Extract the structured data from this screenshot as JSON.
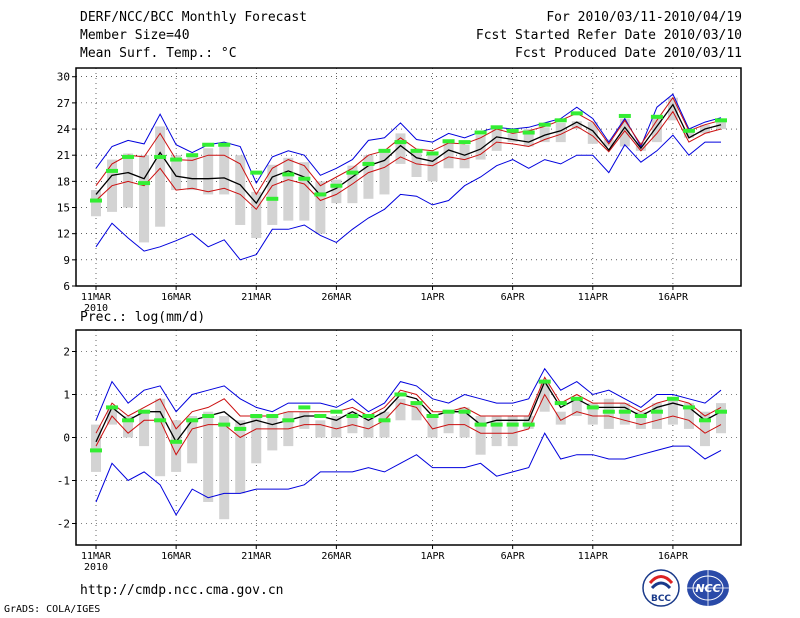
{
  "header": {
    "title": "DERF/NCC/BCC Monthly Forecast",
    "member_size": "Member Size=40",
    "period": "For 2010/03/11-2010/04/19",
    "fcst_started": "Fcst Started Refer Date 2010/03/10",
    "fcst_produced": "Fcst Produced Date 2010/03/11"
  },
  "footer": {
    "url": "http://cmdp.ncc.cma.gov.cn",
    "grads_credit": "GrADS: COLA/IGES",
    "logo_left_text": "BCC",
    "logo_right_text": "NCC"
  },
  "colors": {
    "box": "#d3d3d3",
    "obs": "#33ee33",
    "mean": "#000000",
    "sd": "#cc1111",
    "minmax": "#0000dd"
  },
  "chart_data": [
    {
      "type": "line",
      "title": "Mean Surf. Temp.: °C",
      "x": [
        1,
        2,
        3,
        4,
        5,
        6,
        7,
        8,
        9,
        10,
        11,
        12,
        13,
        14,
        15,
        16,
        17,
        18,
        19,
        20,
        21,
        22,
        23,
        24,
        25,
        26,
        27,
        28,
        29,
        30,
        31,
        32,
        33,
        34,
        35,
        36,
        37,
        38,
        39,
        40
      ],
      "x_tick_labels": [
        "11MAR",
        "16MAR",
        "21MAR",
        "26MAR",
        "1APR",
        "6APR",
        "11APR",
        "16APR"
      ],
      "x_tick_positions": [
        1,
        6,
        11,
        16,
        22,
        27,
        32,
        37
      ],
      "x_year_label": "2010",
      "ylim": [
        6,
        31
      ],
      "yticks": [
        6,
        9,
        12,
        15,
        18,
        21,
        24,
        27,
        30
      ],
      "grid": true,
      "series": [
        {
          "name": "max",
          "values": [
            19.5,
            22.0,
            22.7,
            22.3,
            25.7,
            22.2,
            21.3,
            22.2,
            22.5,
            22.0,
            17.8,
            20.8,
            21.5,
            21.0,
            18.7,
            19.5,
            20.5,
            22.7,
            23.0,
            24.7,
            22.8,
            22.5,
            23.5,
            23.0,
            23.7,
            24.2,
            24.0,
            24.2,
            24.7,
            25.2,
            26.5,
            25.2,
            22.5,
            25.2,
            22.0,
            26.5,
            28.0,
            24.0,
            24.8,
            25.3
          ]
        },
        {
          "name": "mean_plus_sd",
          "values": [
            17.5,
            20.0,
            21.0,
            20.8,
            23.5,
            20.5,
            20.4,
            21.0,
            21.0,
            20.0,
            16.5,
            19.5,
            20.5,
            19.8,
            17.5,
            18.5,
            19.5,
            21.0,
            21.5,
            23.0,
            21.7,
            21.5,
            22.4,
            22.3,
            23.0,
            24.0,
            23.5,
            23.8,
            24.3,
            25.0,
            25.8,
            24.8,
            22.3,
            25.0,
            22.2,
            25.0,
            27.6,
            23.8,
            24.5,
            25.0
          ]
        },
        {
          "name": "mean",
          "values": [
            16.5,
            18.7,
            19.0,
            18.3,
            21.3,
            18.6,
            18.3,
            18.3,
            18.4,
            17.6,
            15.5,
            18.5,
            19.2,
            18.5,
            16.4,
            17.2,
            18.5,
            19.8,
            20.4,
            22.1,
            20.7,
            20.3,
            21.6,
            21.0,
            21.7,
            23.1,
            22.8,
            22.5,
            23.3,
            23.8,
            24.8,
            23.8,
            21.6,
            24.2,
            21.8,
            24.3,
            26.8,
            23.0,
            24.0,
            24.5
          ]
        },
        {
          "name": "mean_minus_sd",
          "values": [
            15.8,
            17.5,
            18.0,
            17.5,
            19.5,
            17.0,
            17.2,
            16.8,
            17.2,
            16.5,
            14.8,
            17.5,
            18.2,
            17.7,
            15.8,
            16.5,
            17.7,
            19.0,
            19.6,
            20.8,
            20.0,
            19.8,
            20.8,
            20.5,
            21.1,
            22.5,
            22.3,
            22.0,
            22.8,
            23.4,
            24.3,
            23.2,
            21.4,
            23.8,
            21.5,
            23.5,
            26.0,
            22.5,
            23.5,
            24.0
          ]
        },
        {
          "name": "min",
          "values": [
            10.5,
            13.2,
            11.5,
            10.0,
            10.5,
            11.2,
            12.0,
            10.5,
            11.3,
            9.0,
            9.6,
            12.5,
            12.5,
            13.0,
            11.8,
            11.0,
            12.5,
            13.8,
            14.8,
            16.5,
            16.3,
            15.3,
            15.8,
            17.5,
            18.5,
            19.8,
            20.5,
            19.5,
            20.5,
            20.0,
            21.0,
            21.0,
            19.0,
            22.2,
            20.2,
            21.5,
            23.3,
            21.0,
            22.5,
            22.5
          ]
        },
        {
          "name": "box_top",
          "values": [
            17.0,
            20.5,
            21.2,
            21.0,
            24.3,
            21.0,
            20.8,
            21.8,
            22.0,
            21.0,
            16.8,
            19.9,
            20.7,
            20.2,
            18.0,
            18.2,
            19.8,
            21.0,
            21.7,
            23.5,
            21.5,
            21.0,
            22.5,
            22.2,
            23.3,
            24.1,
            23.5,
            24.0,
            24.2,
            24.7,
            24.9,
            24.8,
            22.8,
            25.2,
            22.5,
            25.3,
            27.6,
            23.8,
            24.5,
            25.0
          ]
        },
        {
          "name": "box_bottom",
          "values": [
            14.0,
            14.5,
            15.0,
            11.0,
            12.8,
            17.0,
            17.0,
            16.5,
            16.5,
            13.0,
            11.5,
            13.0,
            13.5,
            13.5,
            12.0,
            15.5,
            15.5,
            16.0,
            16.5,
            20.0,
            18.5,
            18.0,
            19.5,
            19.5,
            20.5,
            21.5,
            22.5,
            22.0,
            22.5,
            22.5,
            24.0,
            22.3,
            22.0,
            22.0,
            21.5,
            22.5,
            25.0,
            23.0,
            23.5,
            24.0
          ]
        },
        {
          "name": "observed",
          "values": [
            15.8,
            19.2,
            20.8,
            17.8,
            20.8,
            20.5,
            21.0,
            22.2,
            22.2,
            null,
            19.0,
            16.0,
            18.8,
            18.3,
            16.5,
            17.5,
            19.0,
            20.0,
            21.5,
            22.5,
            21.5,
            21.2,
            22.6,
            22.5,
            23.6,
            24.2,
            23.8,
            23.6,
            24.5,
            25.0,
            25.8,
            null,
            null,
            25.5,
            null,
            25.4,
            null,
            23.8,
            null,
            25.0
          ]
        }
      ]
    },
    {
      "type": "line",
      "title": "Prec.: log(mm/d)",
      "x": [
        1,
        2,
        3,
        4,
        5,
        6,
        7,
        8,
        9,
        10,
        11,
        12,
        13,
        14,
        15,
        16,
        17,
        18,
        19,
        20,
        21,
        22,
        23,
        24,
        25,
        26,
        27,
        28,
        29,
        30,
        31,
        32,
        33,
        34,
        35,
        36,
        37,
        38,
        39,
        40
      ],
      "x_tick_labels": [
        "11MAR",
        "16MAR",
        "21MAR",
        "26MAR",
        "1APR",
        "6APR",
        "11APR",
        "16APR"
      ],
      "x_tick_positions": [
        1,
        6,
        11,
        16,
        22,
        27,
        32,
        37
      ],
      "x_year_label": "2010",
      "ylim": [
        -2.5,
        2.5
      ],
      "yticks": [
        -2,
        -1,
        0,
        1,
        2
      ],
      "grid": true,
      "series": [
        {
          "name": "max",
          "values": [
            0.4,
            1.3,
            0.8,
            1.1,
            1.2,
            0.6,
            1.0,
            1.1,
            1.2,
            0.9,
            0.7,
            0.6,
            0.8,
            0.8,
            0.8,
            0.7,
            0.9,
            0.6,
            0.8,
            1.3,
            1.2,
            0.9,
            0.8,
            1.0,
            0.9,
            0.8,
            0.8,
            0.9,
            1.6,
            1.1,
            1.3,
            1.0,
            1.1,
            0.9,
            0.7,
            1.0,
            1.0,
            0.9,
            0.8,
            1.1
          ]
        },
        {
          "name": "mean_plus_sd",
          "values": [
            0.1,
            0.8,
            0.5,
            0.7,
            0.9,
            0.2,
            0.6,
            0.7,
            0.9,
            0.5,
            0.5,
            0.5,
            0.6,
            0.6,
            0.6,
            0.6,
            0.7,
            0.5,
            0.7,
            1.1,
            1.0,
            0.6,
            0.6,
            0.7,
            0.5,
            0.5,
            0.5,
            0.5,
            1.4,
            0.8,
            1.0,
            0.8,
            0.8,
            0.8,
            0.6,
            0.8,
            0.9,
            0.8,
            0.5,
            0.7
          ]
        },
        {
          "name": "mean",
          "values": [
            -0.1,
            0.7,
            0.4,
            0.6,
            0.6,
            -0.1,
            0.4,
            0.5,
            0.6,
            0.3,
            0.4,
            0.3,
            0.4,
            0.5,
            0.5,
            0.4,
            0.6,
            0.4,
            0.6,
            1.0,
            0.9,
            0.5,
            0.6,
            0.6,
            0.3,
            0.4,
            0.4,
            0.4,
            1.3,
            0.7,
            0.9,
            0.7,
            0.7,
            0.7,
            0.5,
            0.7,
            0.8,
            0.7,
            0.4,
            0.6
          ]
        },
        {
          "name": "mean_minus_sd",
          "values": [
            -0.2,
            0.5,
            0.1,
            0.4,
            0.4,
            -0.4,
            0.2,
            0.3,
            0.3,
            0.0,
            0.2,
            0.2,
            0.2,
            0.3,
            0.3,
            0.2,
            0.3,
            0.2,
            0.4,
            0.8,
            0.7,
            0.2,
            0.3,
            0.3,
            0.1,
            0.1,
            0.1,
            0.2,
            1.0,
            0.4,
            0.6,
            0.5,
            0.5,
            0.4,
            0.3,
            0.4,
            0.5,
            0.4,
            0.1,
            0.3
          ]
        },
        {
          "name": "min",
          "values": [
            -1.5,
            -0.6,
            -1.0,
            -0.8,
            -1.1,
            -1.8,
            -1.2,
            -1.4,
            -1.3,
            -1.3,
            -1.2,
            -1.2,
            -1.2,
            -1.1,
            -0.8,
            -0.8,
            -0.8,
            -0.7,
            -0.8,
            -0.6,
            -0.4,
            -0.7,
            -0.7,
            -0.7,
            -0.6,
            -0.9,
            -0.8,
            -0.7,
            0.1,
            -0.5,
            -0.4,
            -0.4,
            -0.5,
            -0.5,
            -0.4,
            -0.3,
            -0.2,
            -0.2,
            -0.5,
            -0.3
          ]
        },
        {
          "name": "box_top",
          "values": [
            0.3,
            0.7,
            0.5,
            0.6,
            0.9,
            0.4,
            0.5,
            0.6,
            0.5,
            0.4,
            0.5,
            0.5,
            0.6,
            0.6,
            0.4,
            0.5,
            0.6,
            0.5,
            0.6,
            0.9,
            0.8,
            0.5,
            0.6,
            0.7,
            0.5,
            0.5,
            0.5,
            0.5,
            1.3,
            0.6,
            0.9,
            0.8,
            0.9,
            0.8,
            0.6,
            0.8,
            0.9,
            0.8,
            0.6,
            0.8
          ]
        },
        {
          "name": "box_bottom",
          "values": [
            -0.8,
            0.3,
            0.0,
            -0.2,
            -0.9,
            -0.8,
            -0.6,
            -1.5,
            -1.9,
            -1.3,
            -0.6,
            -0.3,
            -0.2,
            0.2,
            0.0,
            0.0,
            0.1,
            0.0,
            0.0,
            0.4,
            0.4,
            0.0,
            0.1,
            0.0,
            -0.4,
            -0.2,
            -0.2,
            0.2,
            0.6,
            0.3,
            0.5,
            0.3,
            0.2,
            0.3,
            0.2,
            0.2,
            0.3,
            0.2,
            -0.2,
            0.1
          ]
        },
        {
          "name": "observed",
          "values": [
            -0.3,
            0.7,
            0.4,
            0.6,
            0.4,
            -0.1,
            0.4,
            0.5,
            0.3,
            0.2,
            0.5,
            0.5,
            0.4,
            0.7,
            0.5,
            0.6,
            0.5,
            0.5,
            0.4,
            1.0,
            0.8,
            0.5,
            0.6,
            0.6,
            0.3,
            0.3,
            0.3,
            0.3,
            1.3,
            0.8,
            0.9,
            0.7,
            0.6,
            0.6,
            0.5,
            0.6,
            0.9,
            0.7,
            0.4,
            0.6
          ]
        }
      ]
    }
  ]
}
